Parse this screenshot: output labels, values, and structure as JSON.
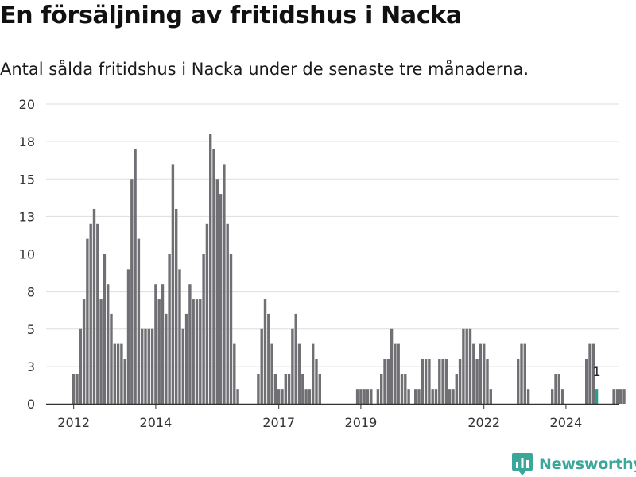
{
  "header": {
    "title": "En försäljning av fritidshus i Nacka",
    "subtitle": "Antal sålda fritidshus i Nacka under de senaste tre månaderna."
  },
  "brand": {
    "name": "Newsworthy",
    "icon": "newsworthy-logo-icon",
    "color": "#3aa79a"
  },
  "colors": {
    "bar": "#707074",
    "highlight": "#2a9d8f",
    "grid": "#dddddd",
    "axis": "#333333"
  },
  "chart_data": {
    "type": "bar",
    "x_start": "2012-01",
    "x_step": "month",
    "ylim": [
      0,
      20
    ],
    "yticks": [
      0,
      3,
      5,
      8,
      10,
      13,
      15,
      18,
      20
    ],
    "ytick_values": [
      0,
      2.5,
      5,
      7.5,
      10,
      12.5,
      15,
      17.5,
      20
    ],
    "xticks": [
      "2012",
      "2014",
      "2017",
      "2019",
      "2022",
      "2024"
    ],
    "xtick_months": [
      "2012-01",
      "2014-01",
      "2017-01",
      "2019-01",
      "2022-01",
      "2024-01"
    ],
    "grid": true,
    "values": [
      2,
      2,
      5,
      7,
      11,
      12,
      13,
      12,
      7,
      10,
      8,
      6,
      4,
      4,
      4,
      3,
      9,
      15,
      17,
      11,
      5,
      5,
      5,
      5,
      8,
      7,
      8,
      6,
      10,
      16,
      13,
      9,
      5,
      6,
      8,
      7,
      7,
      7,
      10,
      12,
      18,
      17,
      15,
      14,
      16,
      12,
      10,
      4,
      1,
      0,
      0,
      0,
      0,
      0,
      2,
      5,
      7,
      6,
      4,
      2,
      1,
      1,
      2,
      2,
      5,
      6,
      4,
      2,
      1,
      1,
      4,
      3,
      2,
      0,
      0,
      0,
      0,
      0,
      0,
      0,
      0,
      0,
      0,
      1,
      1,
      1,
      1,
      1,
      0,
      1,
      2,
      3,
      3,
      5,
      4,
      4,
      2,
      2,
      1,
      0,
      1,
      1,
      3,
      3,
      3,
      1,
      1,
      3,
      3,
      3,
      1,
      1,
      2,
      3,
      5,
      5,
      5,
      4,
      3,
      4,
      4,
      3,
      1,
      0,
      0,
      0,
      0,
      0,
      0,
      0,
      3,
      4,
      4,
      1,
      0,
      0,
      0,
      0,
      0,
      0,
      1,
      2,
      2,
      1,
      0,
      0,
      0,
      0,
      0,
      0,
      3,
      4,
      4,
      1,
      0,
      0,
      0,
      0,
      1,
      1,
      1,
      1
    ],
    "highlight": {
      "month": "2024-10",
      "value": 1,
      "label": "1"
    }
  }
}
